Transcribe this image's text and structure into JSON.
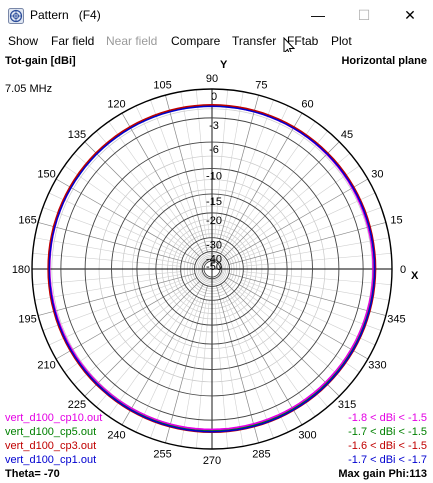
{
  "window": {
    "title": "Pattern   (F4)",
    "minimize": "—",
    "maximize": "☐",
    "close": "✕"
  },
  "menu": [
    {
      "label": "Show",
      "enabled": true
    },
    {
      "label": "Far field",
      "enabled": true
    },
    {
      "label": "Near field",
      "enabled": false
    },
    {
      "label": "Compare",
      "enabled": true
    },
    {
      "label": "Transfer",
      "enabled": true
    },
    {
      "label": "FFtab",
      "enabled": true
    },
    {
      "label": "Plot",
      "enabled": true
    }
  ],
  "plot": {
    "quantity": "Tot-gain [dBi]",
    "plane": "Horizontal plane",
    "frequency": "7.05 MHz",
    "y_axis_label": "Y",
    "x_axis_label": "X",
    "theta": "Theta= -70",
    "max_gain": "Max gain Phi:113"
  },
  "legend": [
    {
      "file": "vert_d100_cp10.out",
      "range": "-1.8 < dBi < -1.5",
      "color": "#e400e4"
    },
    {
      "file": "vert_d100_cp5.out",
      "range": "-1.7 < dBi < -1.5",
      "color": "#008000"
    },
    {
      "file": "vert_d100_cp3.out",
      "range": "-1.6 < dBi < -1.5",
      "color": "#c00000"
    },
    {
      "file": "vert_d100_cp1.out",
      "range": "-1.7 < dBi < -1.7",
      "color": "#0000d0"
    }
  ],
  "chart_data": {
    "type": "polar",
    "angle_labels": [
      "90",
      "75",
      "60",
      "45",
      "30",
      "15",
      "0",
      "345",
      "330",
      "315",
      "300",
      "285",
      "270",
      "255",
      "240",
      "225",
      "210",
      "195",
      "180",
      "165",
      "150",
      "135",
      "120",
      "105"
    ],
    "ring_labels": [
      "0",
      "-3",
      "-6",
      "-10",
      "-15",
      "-20",
      "-30",
      "-40",
      "-50"
    ],
    "radial_range_dBi": [
      -50,
      0
    ],
    "series": [
      {
        "name": "vert_d100_cp10.out",
        "min_dBi": -1.8,
        "max_dBi": -1.5
      },
      {
        "name": "vert_d100_cp5.out",
        "min_dBi": -1.7,
        "max_dBi": -1.5
      },
      {
        "name": "vert_d100_cp3.out",
        "min_dBi": -1.6,
        "max_dBi": -1.5
      },
      {
        "name": "vert_d100_cp1.out",
        "min_dBi": -1.7,
        "max_dBi": -1.7
      }
    ]
  }
}
